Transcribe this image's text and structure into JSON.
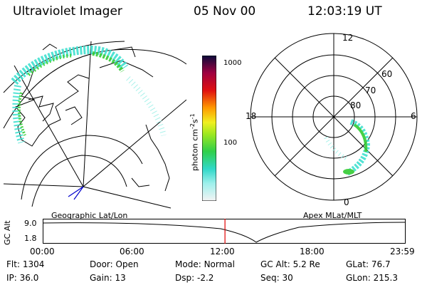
{
  "header": {
    "instrument": "Ultraviolet Imager",
    "date": "05 Nov 00",
    "time": "12:03:19 UT"
  },
  "colorbar": {
    "unit_main": "photon cm",
    "unit_sup1": "-2",
    "unit_mid": "s",
    "unit_sup2": "-1",
    "ticks": [
      "1000",
      "100"
    ]
  },
  "panels": {
    "geographic_label": "Geographic Lat/Lon",
    "apex_label": "Apex MLat/MLT"
  },
  "polar_plot": {
    "mlt_labels": [
      "12",
      "18",
      "6",
      "0"
    ],
    "lat_labels": [
      "60",
      "70",
      "80"
    ]
  },
  "altitude_plot": {
    "axis_label": "GC Alt",
    "y_ticks": [
      "9.0",
      "1.8"
    ],
    "x_ticks": [
      "00:00",
      "06:00",
      "12:00",
      "18:00",
      "23:59"
    ],
    "current_time_fraction": 0.5022
  },
  "info": {
    "flt_label": "Flt:",
    "flt_value": "1304",
    "door_label": "Door:",
    "door_value": "Open",
    "mode_label": "Mode:",
    "mode_value": "Normal",
    "gcalt_label": "GC Alt:",
    "gcalt_value": "5.2 Re",
    "glat_label": "GLat:",
    "glat_value": "76.7",
    "ip_label": "IP:",
    "ip_value": "36.0",
    "gain_label": "Gain:",
    "gain_value": "13",
    "dsp_label": "Dsp:",
    "dsp_value": "-2.2",
    "seq_label": "Seq:",
    "seq_value": "30",
    "glon_label": "GLon:",
    "glon_value": "215.3"
  },
  "colors": {
    "line": "#000000",
    "current_time_marker": "#e00000",
    "aurora_low": "#40e0d0",
    "aurora_high": "#33cc33"
  }
}
